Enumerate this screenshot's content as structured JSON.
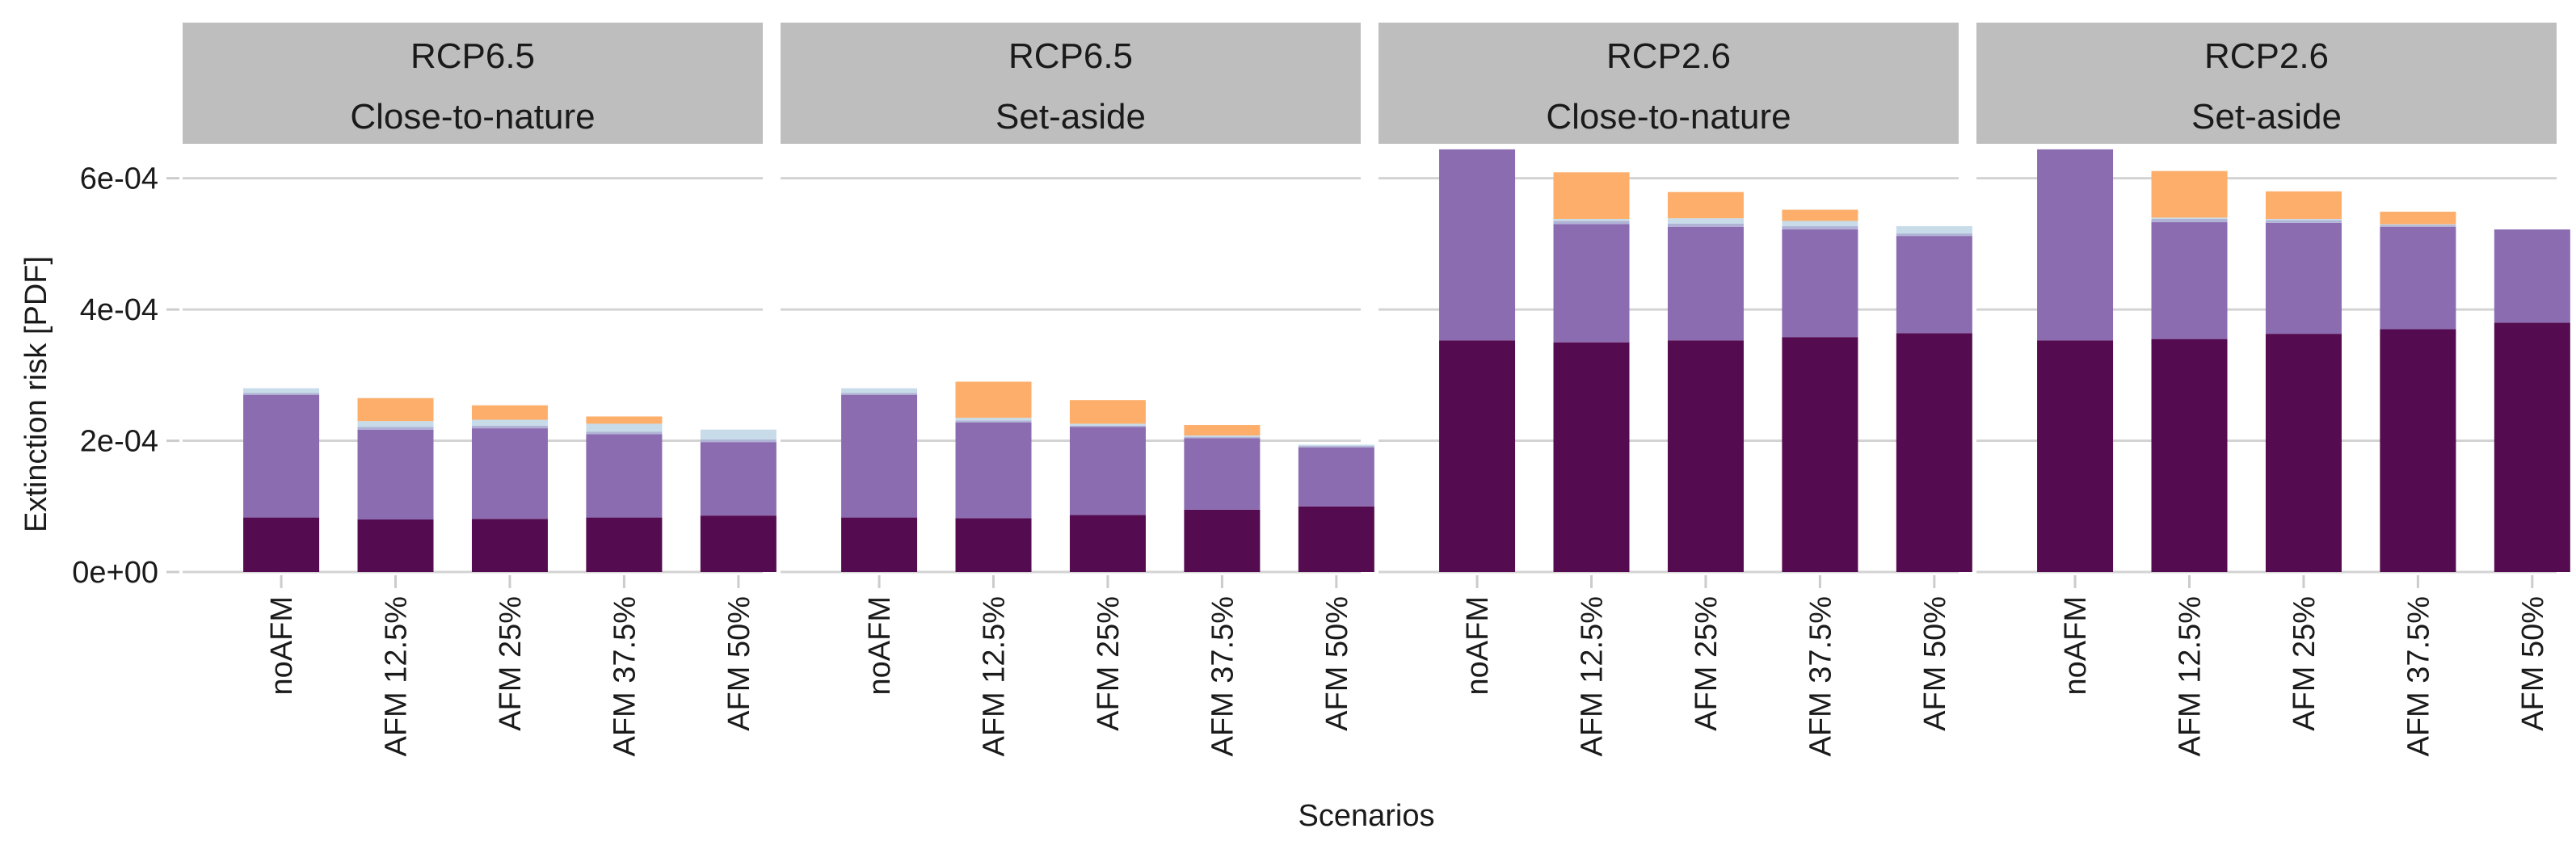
{
  "chart_data": {
    "type": "bar",
    "stacked": true,
    "xlabel": "Scenarios",
    "ylabel": "Extinction risk [PDF]",
    "ylim": [
      0,
      0.00065
    ],
    "yticks": [
      0,
      0.0002,
      0.0004,
      0.0006
    ],
    "ytick_labels": [
      "0e+00",
      "2e-04",
      "4e-04",
      "6e-04"
    ],
    "categories": [
      "noAFM",
      "AFM 12.5%",
      "AFM 25%",
      "AFM 37.5%",
      "AFM 50%"
    ],
    "grid": true,
    "legend": "none",
    "segment_colors": [
      "#540b4f",
      "#8c6cb1",
      "#b0b3d6",
      "#c7dbe9",
      "#fdae6b"
    ],
    "panels": [
      {
        "title_line1": "RCP6.5",
        "title_line2": "Close-to-nature",
        "stacks": [
          [
            8.3e-05,
            0.000187,
            3e-06,
            7e-06,
            0.0
          ],
          [
            8e-05,
            0.000137,
            4e-06,
            9e-06,
            3.5e-05
          ],
          [
            8.1e-05,
            0.000138,
            4e-06,
            9e-06,
            2.2e-05
          ],
          [
            8.3e-05,
            0.000127,
            4e-06,
            1.2e-05,
            1.1e-05
          ],
          [
            8.6e-05,
            0.000112,
            4e-06,
            1.5e-05,
            0.0
          ]
        ]
      },
      {
        "title_line1": "RCP6.5",
        "title_line2": "Set-aside",
        "stacks": [
          [
            8.3e-05,
            0.000187,
            3e-06,
            7e-06,
            0.0
          ],
          [
            8.2e-05,
            0.000146,
            3e-06,
            4e-06,
            5.5e-05
          ],
          [
            8.7e-05,
            0.000134,
            2e-06,
            3e-06,
            3.6e-05
          ],
          [
            9.5e-05,
            0.000109,
            2e-06,
            2e-06,
            1.6e-05
          ],
          [
            0.0001,
            9e-05,
            2e-06,
            2e-06,
            0.0
          ]
        ]
      },
      {
        "title_line1": "RCP2.6",
        "title_line2": "Close-to-nature",
        "stacks": [
          [
            0.000353,
            0.000291,
            0.0,
            0.0,
            0.0
          ],
          [
            0.00035,
            0.00018,
            5e-06,
            3e-06,
            7.1e-05
          ],
          [
            0.000353,
            0.000173,
            5e-06,
            8e-06,
            4e-05
          ],
          [
            0.000358,
            0.000164,
            5e-06,
            8e-06,
            1.7e-05
          ],
          [
            0.000364,
            0.000148,
            4e-06,
            1.1e-05,
            0.0
          ]
        ]
      },
      {
        "title_line1": "RCP2.6",
        "title_line2": "Set-aside",
        "stacks": [
          [
            0.000353,
            0.000291,
            0.0,
            0.0,
            0.0
          ],
          [
            0.000355,
            0.000178,
            5e-06,
            2e-06,
            7.1e-05
          ],
          [
            0.000363,
            0.000169,
            4e-06,
            2e-06,
            4.2e-05
          ],
          [
            0.00037,
            0.000156,
            3e-06,
            1e-06,
            1.9e-05
          ],
          [
            0.00038,
            0.000142,
            0.0,
            0.0,
            0.0
          ]
        ]
      }
    ]
  }
}
